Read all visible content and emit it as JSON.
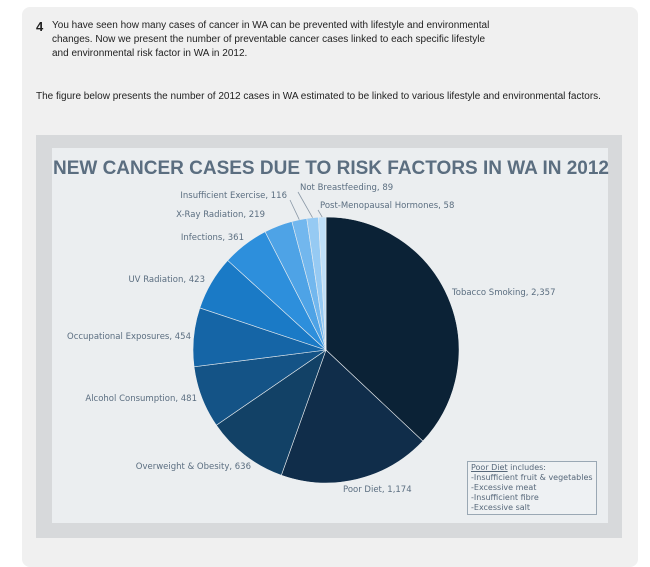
{
  "question": {
    "number": "4",
    "text": "You have seen how many cases of cancer in WA can be prevented with lifestyle and environmental changes.   Now we present the number of preventable cancer cases linked to each specific lifestyle and environmental risk factor in WA in 2012.",
    "figure_caption": "The figure below presents the number of 2012 cases in WA estimated to be linked to various lifestyle and environmental factors."
  },
  "chart_data": {
    "type": "pie",
    "title": "NEW CANCER CASES DUE TO RISK FACTORS IN WA IN 2012",
    "slices": [
      {
        "label": "Tobacco Smoking",
        "value": 2357,
        "display": "Tobacco Smoking, 2,357",
        "color": "#0b2236"
      },
      {
        "label": "Poor Diet",
        "value": 1174,
        "display": "Poor Diet, 1,174",
        "color": "#102d4a"
      },
      {
        "label": "Overweight & Obesity",
        "value": 636,
        "display": "Overweight & Obesity, 636",
        "color": "#124166"
      },
      {
        "label": "Alcohol Consumption",
        "value": 481,
        "display": "Alcohol Consumption, 481",
        "color": "#145386"
      },
      {
        "label": "Occupational Exposures",
        "value": 454,
        "display": "Occupational Exposures, 454",
        "color": "#1565a6"
      },
      {
        "label": "UV Radiation",
        "value": 423,
        "display": "UV Radiation, 423",
        "color": "#1a7ac6"
      },
      {
        "label": "Infections",
        "value": 361,
        "display": "Infections, 361",
        "color": "#2d8fdc"
      },
      {
        "label": "X-Ray Radiation",
        "value": 219,
        "display": "X-Ray Radiation, 219",
        "color": "#4ea3e6"
      },
      {
        "label": "Insufficient Exercise",
        "value": 116,
        "display": "Insufficient Exercise, 116",
        "color": "#72b7ee"
      },
      {
        "label": "Not Breastfeeding",
        "value": 89,
        "display": "Not Breastfeeding, 89",
        "color": "#96caf3"
      },
      {
        "label": "Post-Menopausal Hormones",
        "value": 58,
        "display": "Post-Menopausal Hormones, 58",
        "color": "#bfdff8"
      }
    ],
    "note": {
      "title": "Poor Diet",
      "title_suffix": " includes:",
      "items": [
        "-Insufficient fruit & vegetables",
        "-Excessive meat",
        "-Insufficient fibre",
        "-Excessive salt"
      ]
    },
    "colors": {
      "title": "#5b6e80",
      "labels": "#5b6e80",
      "leader": "#8a98a6"
    }
  }
}
